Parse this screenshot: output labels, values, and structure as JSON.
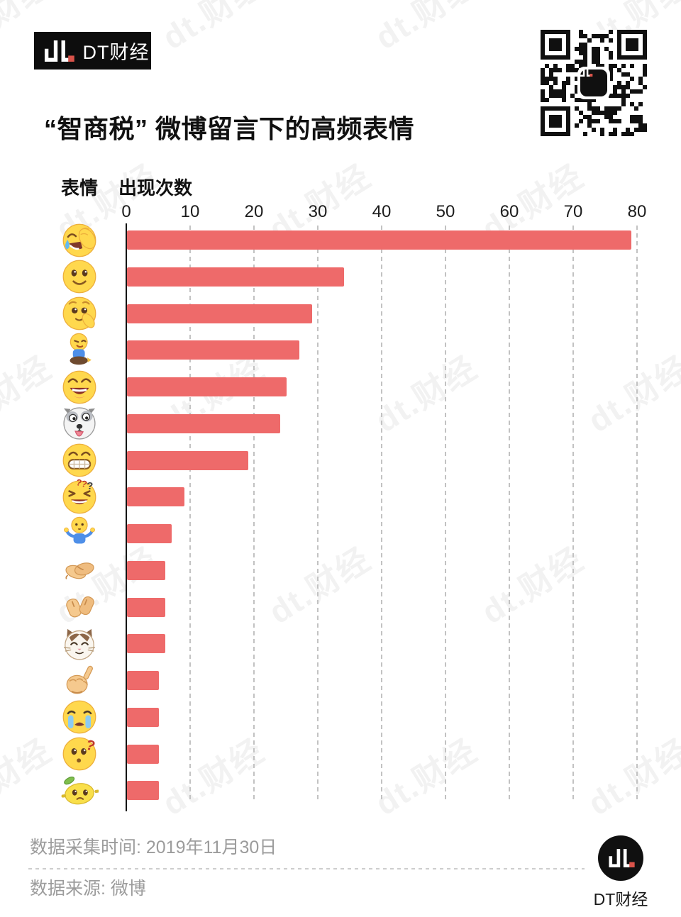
{
  "header": {
    "wordmark": "dt.",
    "brand_name": "DT财经"
  },
  "title": "“智商税” 微博留言下的高频表情",
  "chart_data": {
    "type": "bar",
    "orientation": "horizontal",
    "title": "“智商税” 微博留言下的高频表情",
    "col_headers": {
      "emoji": "表情",
      "count": "出现次数"
    },
    "x_ticks": [
      0,
      10,
      20,
      30,
      40,
      50,
      60,
      70,
      80
    ],
    "xlim": [
      0,
      80
    ],
    "grid": "dashed-vertical-gridlines",
    "bar_color": "#ee6a6a",
    "legend": "none",
    "rows": [
      {
        "emoji": "joy-facepalm",
        "value": 79
      },
      {
        "emoji": "smile",
        "value": 34
      },
      {
        "emoji": "hand-on-chin",
        "value": 29
      },
      {
        "emoji": "sitting-boy",
        "value": 27
      },
      {
        "emoji": "laugh-open-mouth",
        "value": 25
      },
      {
        "emoji": "husky-dog",
        "value": 24
      },
      {
        "emoji": "grin-teeth",
        "value": 19
      },
      {
        "emoji": "squint-double-question",
        "value": 9
      },
      {
        "emoji": "shrug",
        "value": 7
      },
      {
        "emoji": "handshake",
        "value": 6
      },
      {
        "emoji": "high-five",
        "value": 6
      },
      {
        "emoji": "cat-face",
        "value": 6
      },
      {
        "emoji": "pinky-beckon",
        "value": 5
      },
      {
        "emoji": "loud-cry",
        "value": 5
      },
      {
        "emoji": "question-face",
        "value": 5
      },
      {
        "emoji": "lemon",
        "value": 5
      }
    ]
  },
  "footer": {
    "collect_time": "数据采集时间: 2019年11月30日",
    "source": "数据来源: 微博",
    "wordmark": "dt.",
    "brand_name": "DT财经"
  },
  "watermark_text": "dt.财经",
  "colors": {
    "accent_red": "#d9534a",
    "bar": "#ee6a6a",
    "logo_bg": "#0d0d0d",
    "footer_text": "#9c9c9c"
  }
}
